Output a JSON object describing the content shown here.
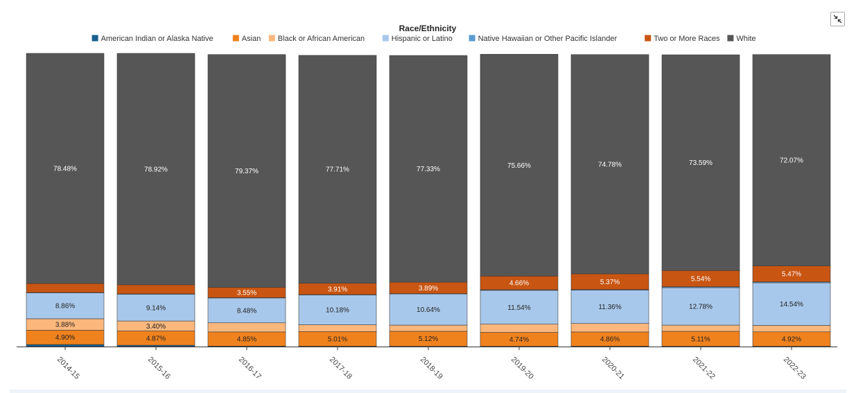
{
  "chart_data": {
    "type": "bar",
    "stacked": true,
    "title": "Race/Ethnicity",
    "legend_position": "top",
    "categories": [
      "2014-15",
      "2015-16",
      "2016-17",
      "2017-18",
      "2018-19",
      "2019-20",
      "2020-21",
      "2021-22",
      "2022-23"
    ],
    "series": [
      {
        "name": "American Indian or Alaska Native",
        "color": "#1a5f8c",
        "values": [
          0.7,
          0.45,
          0.15,
          0.12,
          0.1,
          0.1,
          0.12,
          0.1,
          0.1
        ],
        "labels": [
          "",
          "",
          "",
          "",
          "",
          "",
          "",
          "",
          ""
        ]
      },
      {
        "name": "Asian",
        "color": "#f0821e",
        "values": [
          4.9,
          4.87,
          4.85,
          5.01,
          5.12,
          4.74,
          4.86,
          5.11,
          4.92
        ],
        "labels": [
          "4.90%",
          "4.87%",
          "4.85%",
          "5.01%",
          "5.12%",
          "4.74%",
          "4.86%",
          "5.11%",
          "4.92%"
        ]
      },
      {
        "name": "Black or African American",
        "color": "#fbb77c",
        "values": [
          3.88,
          3.4,
          3.1,
          2.3,
          2.1,
          2.8,
          2.9,
          2.1,
          2.2
        ],
        "labels": [
          "3.88%",
          "3.40%",
          "",
          "",
          "",
          "",
          "",
          "",
          ""
        ]
      },
      {
        "name": "Hispanic or Latino",
        "color": "#a8c8eb",
        "values": [
          8.86,
          9.14,
          8.48,
          10.18,
          10.64,
          11.54,
          11.36,
          12.78,
          14.54
        ],
        "labels": [
          "8.86%",
          "9.14%",
          "8.48%",
          "10.18%",
          "10.64%",
          "11.54%",
          "11.36%",
          "12.78%",
          "14.54%"
        ]
      },
      {
        "name": "Native Hawaiian or Other Pacific Islander",
        "color": "#5b9bd1",
        "values": [
          0.1,
          0.1,
          0.1,
          0.1,
          0.1,
          0.2,
          0.2,
          0.3,
          0.3
        ],
        "labels": [
          "",
          "",
          "",
          "",
          "",
          "",
          "",
          "",
          ""
        ]
      },
      {
        "name": "Two or More Races",
        "color": "#c85512",
        "values": [
          3.08,
          3.12,
          3.55,
          3.91,
          3.89,
          4.66,
          5.37,
          5.54,
          5.47
        ],
        "labels": [
          "",
          "",
          "3.55%",
          "3.91%",
          "3.89%",
          "4.66%",
          "5.37%",
          "5.54%",
          "5.47%"
        ]
      },
      {
        "name": "White",
        "color": "#565656",
        "values": [
          78.48,
          78.92,
          79.37,
          77.71,
          77.33,
          75.66,
          74.78,
          73.59,
          72.07
        ],
        "labels": [
          "78.48%",
          "78.92%",
          "79.37%",
          "77.71%",
          "77.33%",
          "75.66%",
          "74.78%",
          "73.59%",
          "72.07%"
        ]
      }
    ],
    "ylim": [
      0,
      100
    ],
    "xlabel": "",
    "ylabel": "",
    "grid": false
  },
  "controls": {
    "expand_icon": "collapse-arrows-icon"
  }
}
